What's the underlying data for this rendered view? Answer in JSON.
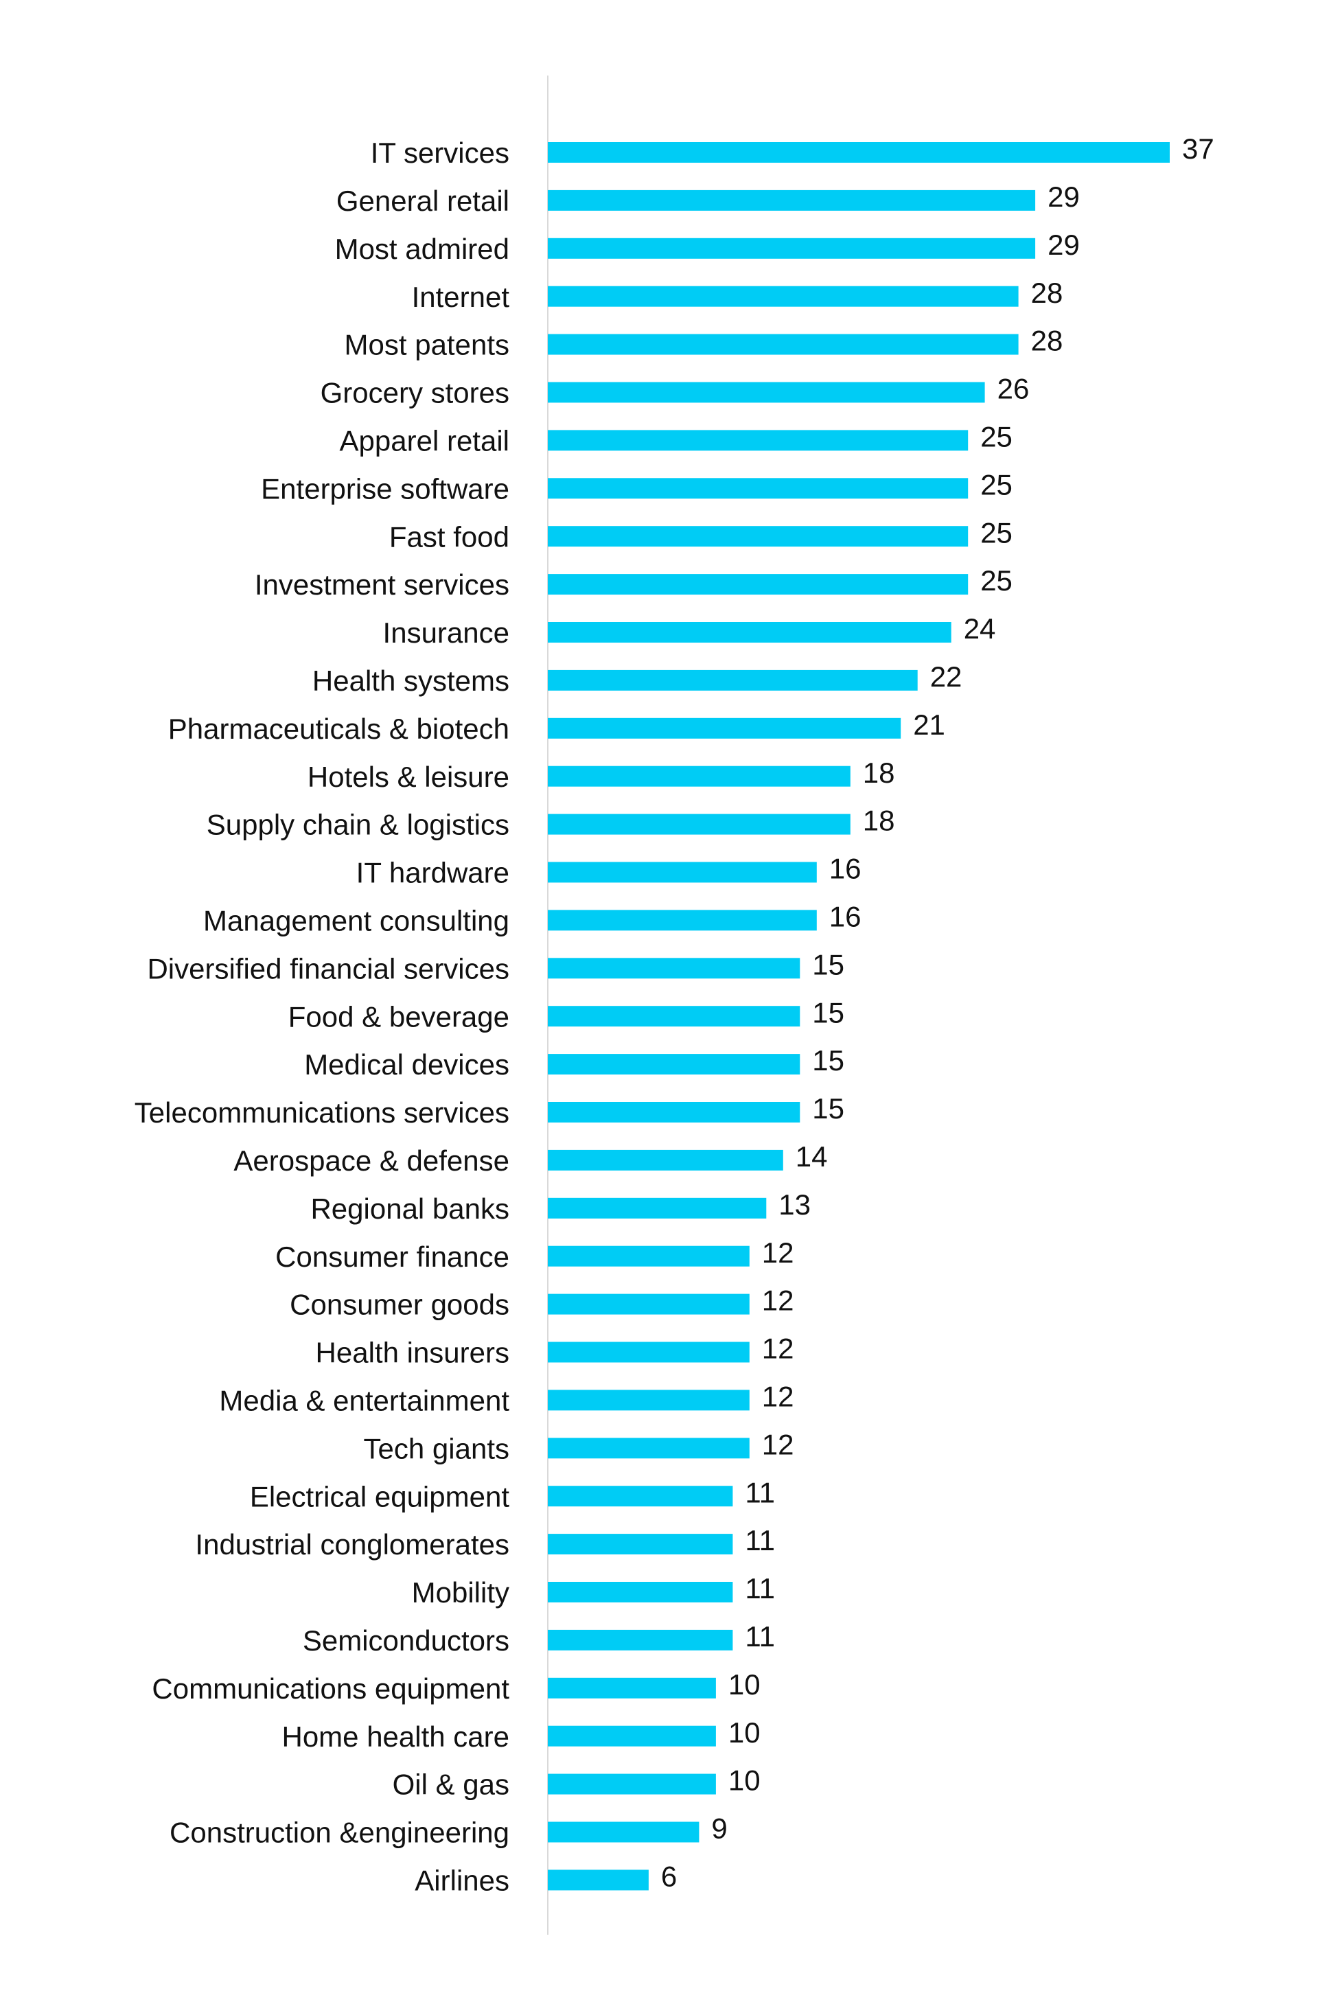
{
  "colors": {
    "bar": "#00ccf5",
    "axis": "#d9d9d9",
    "text": "#111111",
    "background": "#ffffff"
  },
  "chart_data": {
    "type": "bar",
    "orientation": "horizontal",
    "title": "",
    "xlabel": "",
    "ylabel": "",
    "grid": false,
    "legend": "none",
    "xlim": [
      0,
      37
    ],
    "categories": [
      "IT services",
      "General retail",
      "Most admired",
      "Internet",
      "Most patents",
      "Grocery stores",
      "Apparel retail",
      "Enterprise software",
      "Fast food",
      "Investment services",
      "Insurance",
      "Health systems",
      "Pharmaceuticals & biotech",
      "Hotels & leisure",
      "Supply chain & logistics",
      "IT hardware",
      "Management consulting",
      "Diversified financial services",
      "Food & beverage",
      "Medical devices",
      "Telecommunications services",
      "Aerospace & defense",
      "Regional banks",
      "Consumer finance",
      "Consumer goods",
      "Health insurers",
      "Media & entertainment",
      "Tech giants",
      "Electrical equipment",
      "Industrial conglomerates",
      "Mobility",
      "Semiconductors",
      "Communications equipment",
      "Home health care",
      "Oil & gas",
      "Construction &engineering",
      "Airlines"
    ],
    "values": [
      37,
      29,
      29,
      28,
      28,
      26,
      25,
      25,
      25,
      25,
      24,
      22,
      21,
      18,
      18,
      16,
      16,
      15,
      15,
      15,
      15,
      14,
      13,
      12,
      12,
      12,
      12,
      12,
      11,
      11,
      11,
      11,
      10,
      10,
      10,
      9,
      6
    ]
  }
}
